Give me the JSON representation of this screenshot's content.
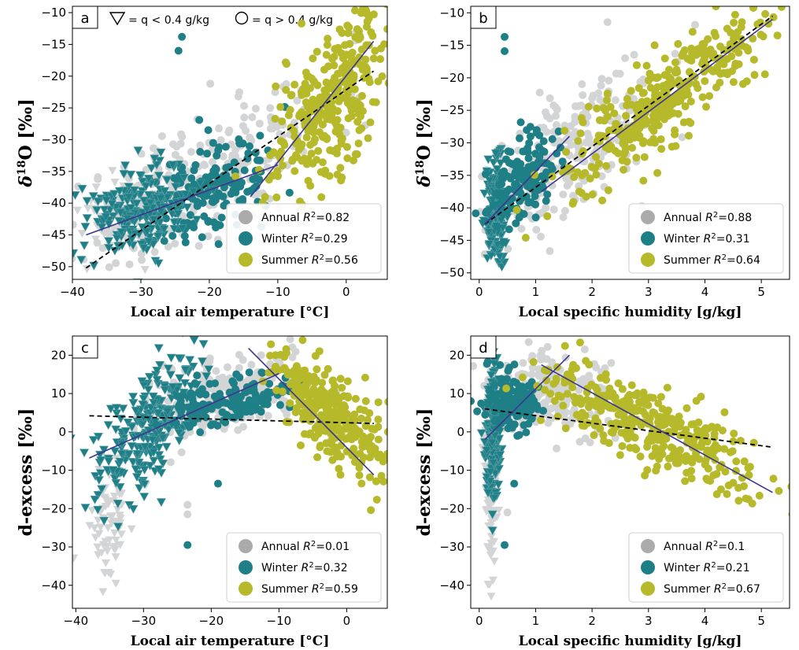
{
  "colors": {
    "annual": "#d3d4d6",
    "winter": "#1f7f86",
    "summer": "#b5b92a",
    "annual_legend": "#ababab",
    "fit_line": "#3c3590",
    "overall_fit": "#000000"
  },
  "top_note": {
    "triangle_text": "= q < 0.4 g/kg",
    "circle_text": "= q > 0.4 g/kg"
  },
  "chart_data": [
    {
      "panel": "a",
      "type": "scatter",
      "xlabel": "Local air temperature  [°C]",
      "ylabel_main": "δ",
      "ylabel_sup": "18",
      "ylabel_tail": "O [‰]",
      "xlim": [
        -40,
        6
      ],
      "ylim": [
        -52,
        -9
      ],
      "xticks": [
        -40,
        -30,
        -20,
        -10,
        0
      ],
      "yticks": [
        -50,
        -45,
        -40,
        -35,
        -30,
        -25,
        -20,
        -15,
        -10
      ],
      "legend": {
        "placement": "lower-right",
        "entries": [
          {
            "label": "Annual",
            "r2": "0.82"
          },
          {
            "label": "Winter",
            "r2": "0.29"
          },
          {
            "label": "Summer",
            "r2": "0.56"
          }
        ]
      },
      "clusters": [
        {
          "series": "annual",
          "marker": "circle",
          "cx": -22,
          "cy": -36,
          "sx": 10,
          "sy": 5,
          "n": 260,
          "seed": 11,
          "slope": 0.55
        },
        {
          "series": "annual",
          "marker": "triangle",
          "cx": -32,
          "cy": -42,
          "sx": 4,
          "sy": 3,
          "n": 90,
          "seed": 12,
          "slope": 0.3
        },
        {
          "series": "winter",
          "marker": "circle",
          "cx": -20,
          "cy": -38,
          "sx": 5,
          "sy": 3.5,
          "n": 170,
          "seed": 13,
          "slope": 0.35
        },
        {
          "series": "winter",
          "marker": "triangle",
          "cx": -30,
          "cy": -41,
          "sx": 4,
          "sy": 3.5,
          "n": 220,
          "seed": 14,
          "slope": 0.3
        },
        {
          "series": "summer",
          "marker": "circle",
          "cx": -2,
          "cy": -23,
          "sx": 4.5,
          "sy": 5.5,
          "n": 320,
          "seed": 15,
          "slope": 1.1
        }
      ],
      "extra_points": [
        {
          "series": "winter",
          "x": -24,
          "y": -13.8
        },
        {
          "series": "winter",
          "x": -24.5,
          "y": -16
        }
      ],
      "fits": [
        {
          "series": "overall",
          "style": "dashed",
          "x": [
            -38,
            4
          ],
          "y": [
            -50.2,
            -19.2
          ]
        },
        {
          "series": "winter",
          "style": "solid",
          "x": [
            -38,
            -10
          ],
          "y": [
            -45,
            -34
          ]
        },
        {
          "series": "summer",
          "style": "solid",
          "x": [
            -14,
            4
          ],
          "y": [
            -39,
            -14.5
          ]
        }
      ]
    },
    {
      "panel": "b",
      "type": "scatter",
      "xlabel": "Local specific humidity [g/kg]",
      "ylabel_main": "δ",
      "ylabel_sup": "18",
      "ylabel_tail": "O [‰]",
      "xlim": [
        -0.15,
        5.5
      ],
      "ylim": [
        -51,
        -9
      ],
      "xticks": [
        0,
        1,
        2,
        3,
        4,
        5
      ],
      "yticks": [
        -50,
        -45,
        -40,
        -35,
        -30,
        -25,
        -20,
        -15,
        -10
      ],
      "legend": {
        "placement": "lower-right",
        "entries": [
          {
            "label": "Annual",
            "r2": "0.88"
          },
          {
            "label": "Winter",
            "r2": "0.31"
          },
          {
            "label": "Summer",
            "r2": "0.64"
          }
        ]
      },
      "clusters": [
        {
          "series": "annual",
          "marker": "circle",
          "cx": 1.6,
          "cy": -32,
          "sx": 0.9,
          "sy": 5,
          "n": 240,
          "seed": 21,
          "slope": 6
        },
        {
          "series": "winter",
          "marker": "triangle",
          "cx": 0.3,
          "cy": -41,
          "sx": 0.08,
          "sy": 4,
          "n": 180,
          "seed": 22,
          "slope": 0
        },
        {
          "series": "winter",
          "marker": "circle",
          "cx": 0.75,
          "cy": -36,
          "sx": 0.3,
          "sy": 3,
          "n": 150,
          "seed": 23,
          "slope": 5
        },
        {
          "series": "summer",
          "marker": "circle",
          "cx": 3.2,
          "cy": -24,
          "sx": 0.95,
          "sy": 3.5,
          "n": 360,
          "seed": 24,
          "slope": 6.3
        }
      ],
      "extra_points": [
        {
          "series": "winter",
          "x": 0.45,
          "y": -13.7
        },
        {
          "series": "winter",
          "x": 0.45,
          "y": -15.9
        }
      ],
      "fits": [
        {
          "series": "overall",
          "style": "dashed",
          "x": [
            0.1,
            5.2
          ],
          "y": [
            -42.5,
            -10.5
          ]
        },
        {
          "series": "winter",
          "style": "solid",
          "x": [
            0.1,
            1.6
          ],
          "y": [
            -42.5,
            -29
          ]
        },
        {
          "series": "summer",
          "style": "solid",
          "x": [
            1.1,
            5.2
          ],
          "y": [
            -37.5,
            -11
          ]
        }
      ]
    },
    {
      "panel": "c",
      "type": "scatter",
      "xlabel": "Local air temperature  [°C]",
      "ylabel_main": "d-excess [‰]",
      "ylabel_sup": "",
      "ylabel_tail": "",
      "xlim": [
        -40.5,
        6
      ],
      "ylim": [
        -46,
        25
      ],
      "xticks": [
        -40,
        -30,
        -20,
        -10,
        0
      ],
      "yticks": [
        -40,
        -30,
        -20,
        -10,
        0,
        10,
        20
      ],
      "legend": {
        "placement": "lower-right",
        "entries": [
          {
            "label": "Annual",
            "r2": "0.01"
          },
          {
            "label": "Winter",
            "r2": "0.32"
          },
          {
            "label": "Summer",
            "r2": "0.59"
          }
        ]
      },
      "clusters": [
        {
          "series": "annual",
          "marker": "circle",
          "cx": -18,
          "cy": 9,
          "sx": 6,
          "sy": 5,
          "n": 220,
          "seed": 31,
          "slope": 0.3
        },
        {
          "series": "annual",
          "marker": "triangle",
          "cx": -35,
          "cy": -22,
          "sx": 2,
          "sy": 8,
          "n": 70,
          "seed": 32,
          "slope": 2
        },
        {
          "series": "winter",
          "marker": "triangle",
          "cx": -29,
          "cy": 1,
          "sx": 4,
          "sy": 7,
          "n": 260,
          "seed": 33,
          "slope": 1.4
        },
        {
          "series": "winter",
          "marker": "circle",
          "cx": -17,
          "cy": 8,
          "sx": 5,
          "sy": 3,
          "n": 160,
          "seed": 34,
          "slope": 0.2
        },
        {
          "series": "summer",
          "marker": "circle",
          "cx": -2,
          "cy": 4,
          "sx": 4.5,
          "sy": 6,
          "n": 320,
          "seed": 35,
          "slope": -1.2
        }
      ],
      "extra_points": [
        {
          "series": "winter",
          "x": -23.5,
          "y": -29.5
        },
        {
          "series": "winter",
          "x": -19,
          "y": -13.5
        },
        {
          "series": "annual",
          "x": -23.5,
          "y": -21.5
        },
        {
          "series": "annual",
          "x": -23.5,
          "y": -19
        }
      ],
      "fits": [
        {
          "series": "overall",
          "style": "dashed",
          "x": [
            -38,
            4
          ],
          "y": [
            4.2,
            2.2
          ]
        },
        {
          "series": "winter",
          "style": "solid",
          "x": [
            -38,
            -10
          ],
          "y": [
            -6.8,
            15.2
          ]
        },
        {
          "series": "summer",
          "style": "solid",
          "x": [
            -14.5,
            4
          ],
          "y": [
            21.8,
            -11.2
          ]
        }
      ]
    },
    {
      "panel": "d",
      "type": "scatter",
      "xlabel": "Local specific humidity [g/kg]",
      "ylabel_main": "d-excess [‰]",
      "ylabel_sup": "",
      "ylabel_tail": "",
      "xlim": [
        -0.15,
        5.5
      ],
      "ylim": [
        -46,
        25
      ],
      "xticks": [
        0,
        1,
        2,
        3,
        4,
        5
      ],
      "yticks": [
        -40,
        -30,
        -20,
        -10,
        0,
        10,
        20
      ],
      "legend": {
        "placement": "lower-right",
        "entries": [
          {
            "label": "Annual",
            "r2": "0.1"
          },
          {
            "label": "Winter",
            "r2": "0.21"
          },
          {
            "label": "Summer",
            "r2": "0.67"
          }
        ]
      },
      "clusters": [
        {
          "series": "annual",
          "marker": "circle",
          "cx": 1.2,
          "cy": 10,
          "sx": 0.6,
          "sy": 5,
          "n": 200,
          "seed": 41,
          "slope": 0
        },
        {
          "series": "annual",
          "marker": "triangle",
          "cx": 0.2,
          "cy": -15,
          "sx": 0.06,
          "sy": 12,
          "n": 90,
          "seed": 42,
          "slope": 0
        },
        {
          "series": "winter",
          "marker": "triangle",
          "cx": 0.25,
          "cy": 0,
          "sx": 0.07,
          "sy": 8,
          "n": 220,
          "seed": 43,
          "slope": 0
        },
        {
          "series": "winter",
          "marker": "circle",
          "cx": 0.6,
          "cy": 8,
          "sx": 0.25,
          "sy": 4,
          "n": 140,
          "seed": 44,
          "slope": 0
        },
        {
          "series": "summer",
          "marker": "circle",
          "cx": 3,
          "cy": 2,
          "sx": 1,
          "sy": 5,
          "n": 340,
          "seed": 45,
          "slope": -6.5
        }
      ],
      "extra_points": [
        {
          "series": "winter",
          "x": 0.45,
          "y": -29.5
        },
        {
          "series": "winter",
          "x": 0.62,
          "y": -13.5
        },
        {
          "series": "annual",
          "x": 0.5,
          "y": -21
        }
      ],
      "fits": [
        {
          "series": "overall",
          "style": "dashed",
          "x": [
            0.1,
            5.2
          ],
          "y": [
            6,
            -4
          ]
        },
        {
          "series": "winter",
          "style": "solid",
          "x": [
            0.1,
            1.6
          ],
          "y": [
            -2,
            20
          ]
        },
        {
          "series": "summer",
          "style": "solid",
          "x": [
            1.1,
            5.2
          ],
          "y": [
            17.5,
            -15.8
          ]
        }
      ]
    }
  ]
}
